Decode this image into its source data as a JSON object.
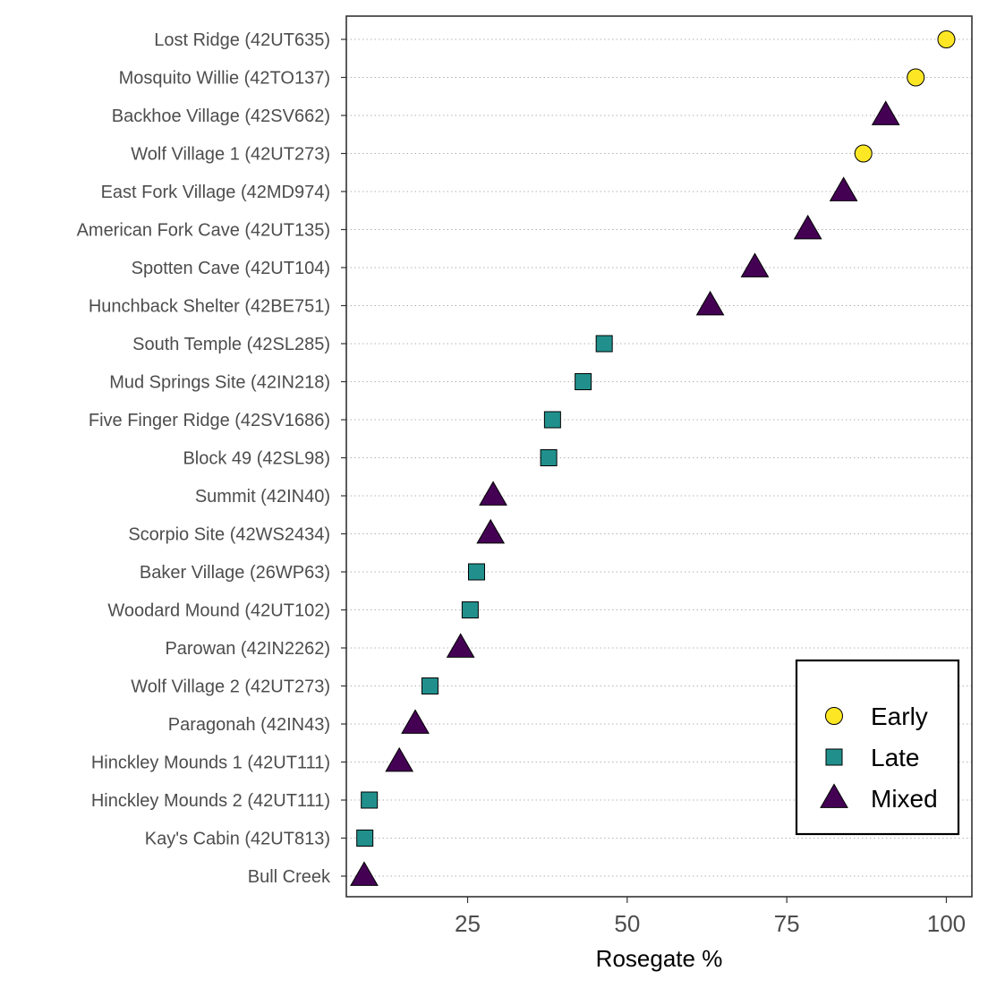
{
  "chart_data": {
    "type": "scatter",
    "title": "",
    "xlabel": "Rosegate %",
    "ylabel": "",
    "xlim": [
      6,
      104
    ],
    "x_ticks": [
      25,
      50,
      75,
      100
    ],
    "grid": "dotted horizontal",
    "legend_position": "bottom-right",
    "groups": [
      {
        "name": "Early",
        "shape": "circle",
        "color": "#FDE725"
      },
      {
        "name": "Late",
        "shape": "square",
        "color": "#21908C"
      },
      {
        "name": "Mixed",
        "shape": "triangle",
        "color": "#440154"
      }
    ],
    "points": [
      {
        "site": "Lost Ridge (42UT635)",
        "value": 100.0,
        "group": "Early"
      },
      {
        "site": "Mosquito Willie (42TO137)",
        "value": 95.2,
        "group": "Early"
      },
      {
        "site": "Backhoe Village (42SV662)",
        "value": 90.5,
        "group": "Mixed"
      },
      {
        "site": "Wolf Village 1 (42UT273)",
        "value": 87.0,
        "group": "Early"
      },
      {
        "site": "East Fork Village (42MD974)",
        "value": 83.9,
        "group": "Mixed"
      },
      {
        "site": "American Fork Cave (42UT135)",
        "value": 78.3,
        "group": "Mixed"
      },
      {
        "site": "Spotten Cave (42UT104)",
        "value": 70.0,
        "group": "Mixed"
      },
      {
        "site": "Hunchback Shelter (42BE751)",
        "value": 63.0,
        "group": "Mixed"
      },
      {
        "site": "South Temple (42SL285)",
        "value": 46.4,
        "group": "Late"
      },
      {
        "site": "Mud Springs Site (42IN218)",
        "value": 43.1,
        "group": "Late"
      },
      {
        "site": "Five Finger Ridge (42SV1686)",
        "value": 38.3,
        "group": "Late"
      },
      {
        "site": "Block 49 (42SL98)",
        "value": 37.7,
        "group": "Late"
      },
      {
        "site": "Summit (42IN40)",
        "value": 29.0,
        "group": "Mixed"
      },
      {
        "site": "Scorpio Site (42WS2434)",
        "value": 28.6,
        "group": "Mixed"
      },
      {
        "site": "Baker Village (26WP63)",
        "value": 26.4,
        "group": "Late"
      },
      {
        "site": "Woodard Mound (42UT102)",
        "value": 25.4,
        "group": "Late"
      },
      {
        "site": "Parowan (42IN2262)",
        "value": 23.9,
        "group": "Mixed"
      },
      {
        "site": "Wolf Village 2 (42UT273)",
        "value": 19.1,
        "group": "Late"
      },
      {
        "site": "Paragonah (42IN43)",
        "value": 16.8,
        "group": "Mixed"
      },
      {
        "site": "Hinckley Mounds 1 (42UT111)",
        "value": 14.3,
        "group": "Mixed"
      },
      {
        "site": "Hinckley Mounds 2 (42UT111)",
        "value": 9.6,
        "group": "Late"
      },
      {
        "site": "Kay's Cabin (42UT813)",
        "value": 8.9,
        "group": "Late"
      },
      {
        "site": "Bull Creek",
        "value": 8.8,
        "group": "Mixed"
      }
    ]
  }
}
